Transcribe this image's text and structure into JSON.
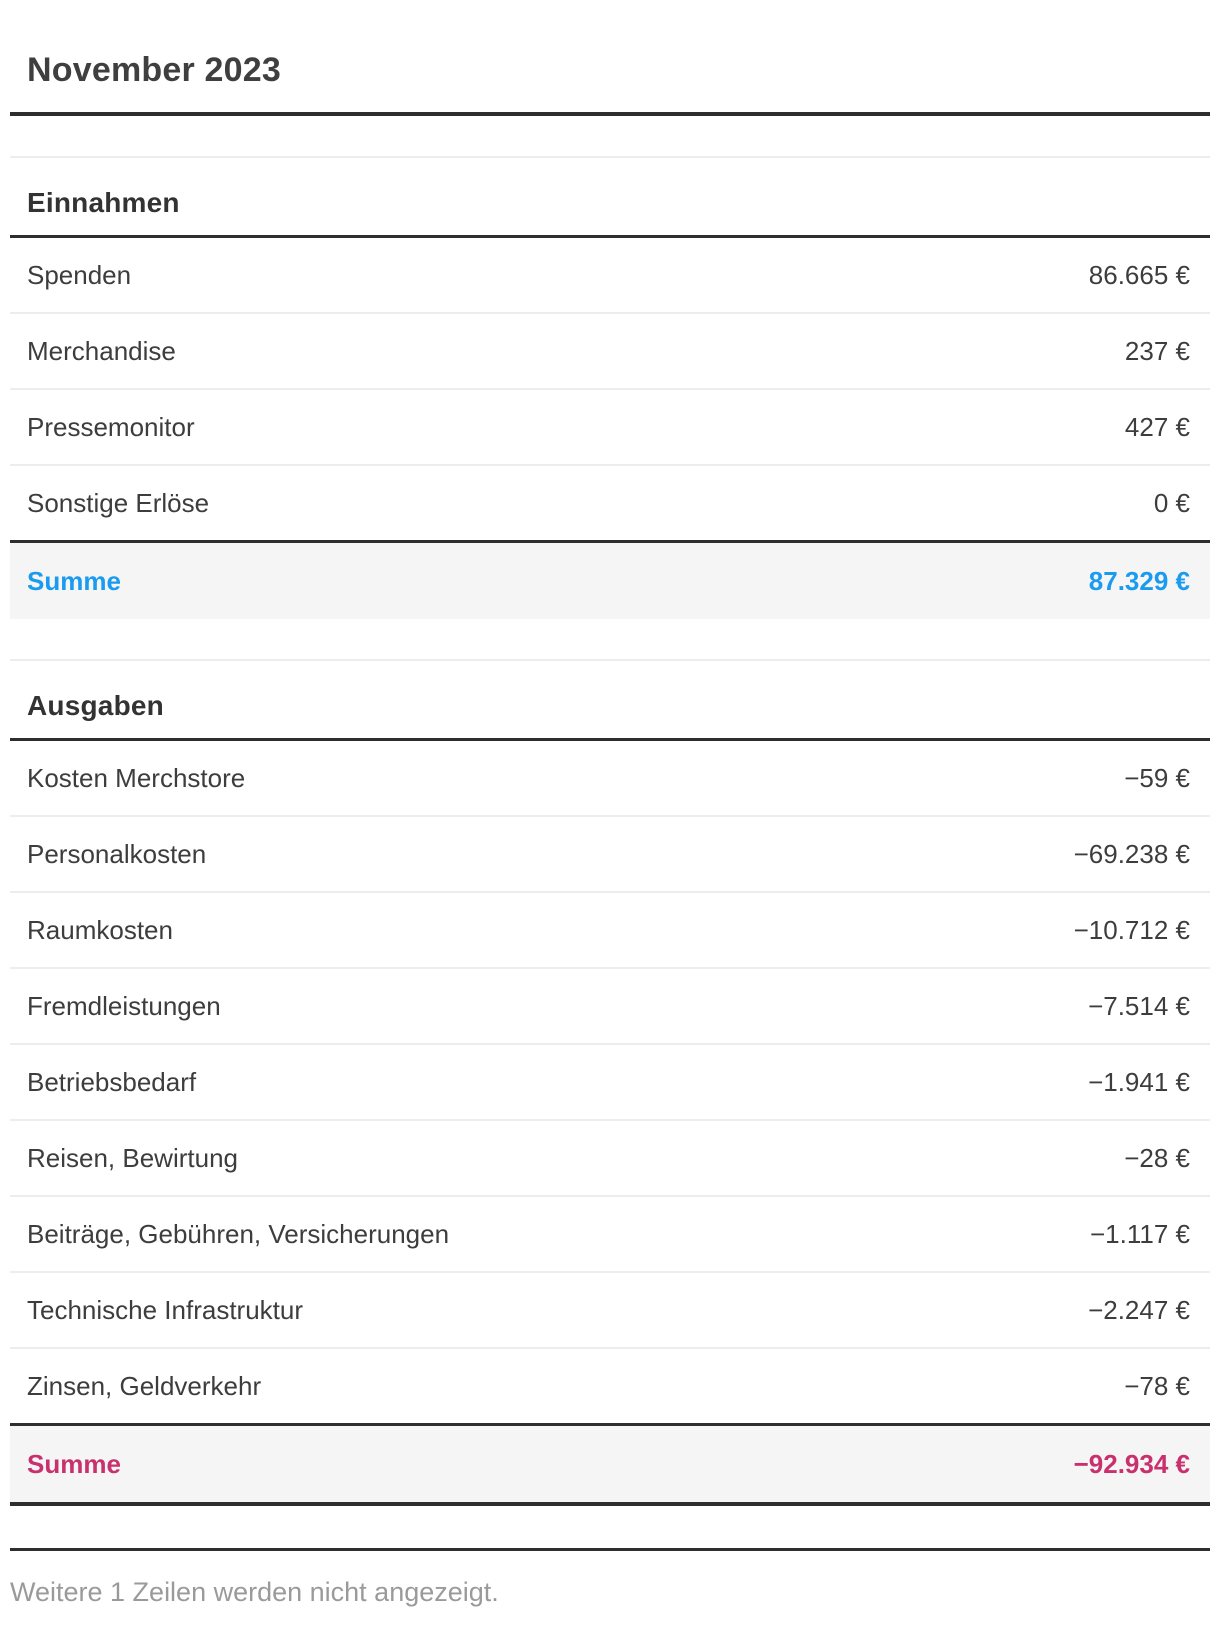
{
  "report": {
    "title": "November 2023",
    "sections": [
      {
        "heading": "Einnahmen",
        "rows": [
          {
            "label": "Spenden",
            "value": "86.665 €"
          },
          {
            "label": "Merchandise",
            "value": "237 €"
          },
          {
            "label": "Pressemonitor",
            "value": "427 €"
          },
          {
            "label": "Sonstige Erlöse",
            "value": "0 €"
          }
        ],
        "total": {
          "label": "Summe",
          "value": "87.329 €"
        }
      },
      {
        "heading": "Ausgaben",
        "rows": [
          {
            "label": "Kosten Merchstore",
            "value": "−59 €"
          },
          {
            "label": "Personalkosten",
            "value": "−69.238 €"
          },
          {
            "label": "Raumkosten",
            "value": "−10.712 €"
          },
          {
            "label": "Fremdleistungen",
            "value": "−7.514 €"
          },
          {
            "label": "Betriebsbedarf",
            "value": "−1.941 €"
          },
          {
            "label": "Reisen, Bewirtung",
            "value": "−28 €"
          },
          {
            "label": "Beiträge, Gebühren, Versicherungen",
            "value": "−1.117 €"
          },
          {
            "label": "Technische Infrastruktur",
            "value": "−2.247 €"
          },
          {
            "label": "Zinsen, Geldverkehr",
            "value": "−78 €"
          }
        ],
        "total": {
          "label": "Summe",
          "value": "−92.934 €"
        }
      }
    ],
    "footer_note": "Weitere 1 Zeilen werden nicht angezeigt."
  },
  "colors": {
    "income_total": "#1a9bf0",
    "expense_total": "#c9306e",
    "body_text": "#3d3d3d",
    "heading_text": "#333333",
    "rule_dark": "#2e2e2e",
    "rule_light": "#ededed",
    "total_row_bg": "#f5f5f5",
    "footer_text": "#9a9a9a"
  }
}
